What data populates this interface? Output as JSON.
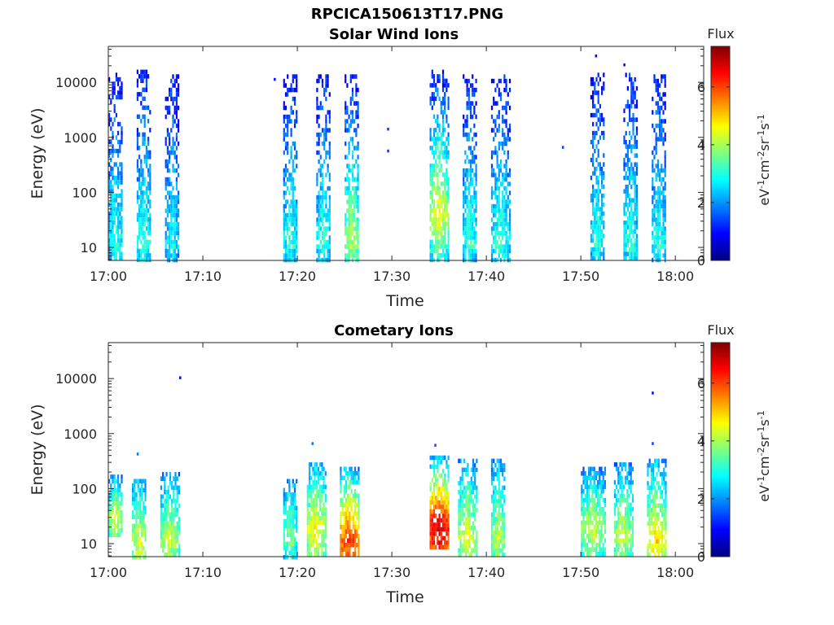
{
  "figure_title": "RPCICA150613T17.PNG",
  "colorbar": {
    "label": "Flux",
    "unit_html": "eV<tspan baseline-shift='super' font-size='11'>-1</tspan>cm<tspan baseline-shift='super' font-size='11'>-2</tspan>sr<tspan baseline-shift='super' font-size='11'>-1</tspan>s<tspan baseline-shift='super' font-size='11'>-1</tspan>",
    "unit_text": "eV-1cm-2sr-1s-1",
    "range": [
      0,
      7.4
    ],
    "ticks": [
      "0",
      "2",
      "4",
      "6"
    ],
    "colormap": "jet"
  },
  "chart_data": [
    {
      "type": "heatmap",
      "title": "Solar Wind Ions",
      "xlabel": "Time",
      "ylabel": "Energy (eV)",
      "x_range": [
        "17:00",
        "18:03"
      ],
      "x_ticks": [
        "17:00",
        "17:10",
        "17:20",
        "17:30",
        "17:40",
        "17:50",
        "18:00"
      ],
      "y_scale": "log",
      "y_range": [
        5.8,
        45000
      ],
      "y_ticks": [
        "10",
        "100",
        "1000",
        "10000"
      ],
      "scans": [
        {
          "start": "17:00",
          "end": "17:01.5",
          "min_e": 6,
          "max_e": 15000,
          "peak_e": 12,
          "peak_flux": 3.2,
          "high_flux": 1.2
        },
        {
          "start": "17:03",
          "end": "17:04.5",
          "min_e": 6,
          "max_e": 17000,
          "peak_e": 12,
          "peak_flux": 3.3,
          "high_flux": 1.3
        },
        {
          "start": "17:06",
          "end": "17:07.5",
          "min_e": 6,
          "max_e": 14000,
          "peak_e": 12,
          "peak_flux": 3.0,
          "high_flux": 1.2
        },
        {
          "start": "17:18.5",
          "end": "17:20",
          "min_e": 6,
          "max_e": 14000,
          "peak_e": 12,
          "peak_flux": 3.2,
          "high_flux": 1.3
        },
        {
          "start": "17:22",
          "end": "17:23.5",
          "min_e": 6,
          "max_e": 14000,
          "peak_e": 12,
          "peak_flux": 3.2,
          "high_flux": 1.3
        },
        {
          "start": "17:25",
          "end": "17:26.5",
          "min_e": 6,
          "max_e": 14000,
          "peak_e": 12,
          "peak_flux": 4.2,
          "high_flux": 1.3
        },
        {
          "start": "17:34",
          "end": "17:36",
          "min_e": 6,
          "max_e": 17000,
          "peak_e": 40,
          "peak_flux": 4.6,
          "high_flux": 1.3
        },
        {
          "start": "17:37.5",
          "end": "17:39",
          "min_e": 6,
          "max_e": 14000,
          "peak_e": 12,
          "peak_flux": 3.3,
          "high_flux": 1.3
        },
        {
          "start": "17:40.5",
          "end": "17:42.5",
          "min_e": 6,
          "max_e": 14000,
          "peak_e": 12,
          "peak_flux": 3.3,
          "high_flux": 1.3
        },
        {
          "start": "17:51",
          "end": "17:52.5",
          "min_e": 6,
          "max_e": 15000,
          "peak_e": 12,
          "peak_flux": 3.2,
          "high_flux": 1.3
        },
        {
          "start": "17:54.5",
          "end": "17:56",
          "min_e": 6,
          "max_e": 18000,
          "peak_e": 12,
          "peak_flux": 3.2,
          "high_flux": 1.3
        },
        {
          "start": "17:57.5",
          "end": "17:59",
          "min_e": 6,
          "max_e": 14000,
          "peak_e": 12,
          "peak_flux": 3.2,
          "high_flux": 1.3
        }
      ],
      "points": [
        {
          "t": "17:17.5",
          "e": 12000,
          "flux": 1.0
        },
        {
          "t": "17:29.5",
          "e": 1500,
          "flux": 1.3
        },
        {
          "t": "17:29.5",
          "e": 600,
          "flux": 1.3
        },
        {
          "t": "17:48",
          "e": 700,
          "flux": 1.5
        },
        {
          "t": "17:51.5",
          "e": 32000,
          "flux": 1.0
        },
        {
          "t": "17:54.5",
          "e": 22000,
          "flux": 1.0
        }
      ]
    },
    {
      "type": "heatmap",
      "title": "Cometary Ions",
      "xlabel": "Time",
      "ylabel": "Energy (eV)",
      "x_range": [
        "17:00",
        "18:03"
      ],
      "x_ticks": [
        "17:00",
        "17:10",
        "17:20",
        "17:30",
        "17:40",
        "17:50",
        "18:00"
      ],
      "y_scale": "log",
      "y_range": [
        5.8,
        45000
      ],
      "y_ticks": [
        "10",
        "100",
        "1000",
        "10000"
      ],
      "scans": [
        {
          "start": "17:00",
          "end": "17:01.5",
          "min_e": 15,
          "max_e": 180,
          "peak_e": 35,
          "peak_flux": 4.5,
          "high_flux": 2.3
        },
        {
          "start": "17:02.5",
          "end": "17:04",
          "min_e": 6,
          "max_e": 150,
          "peak_e": 12,
          "peak_flux": 4.6,
          "high_flux": 2.4
        },
        {
          "start": "17:05.5",
          "end": "17:07.5",
          "min_e": 6,
          "max_e": 200,
          "peak_e": 12,
          "peak_flux": 4.4,
          "high_flux": 2.3
        },
        {
          "start": "17:18.5",
          "end": "17:20",
          "min_e": 6,
          "max_e": 150,
          "peak_e": 15,
          "peak_flux": 3.8,
          "high_flux": 2.3
        },
        {
          "start": "17:21",
          "end": "17:23",
          "min_e": 6,
          "max_e": 300,
          "peak_e": 20,
          "peak_flux": 4.8,
          "high_flux": 2.5
        },
        {
          "start": "17:24.5",
          "end": "17:26.5",
          "min_e": 6,
          "max_e": 250,
          "peak_e": 12,
          "peak_flux": 6.3,
          "high_flux": 2.6
        },
        {
          "start": "17:34",
          "end": "17:36",
          "min_e": 8,
          "max_e": 400,
          "peak_e": 22,
          "peak_flux": 7.0,
          "high_flux": 2.6
        },
        {
          "start": "17:37",
          "end": "17:39",
          "min_e": 6,
          "max_e": 350,
          "peak_e": 15,
          "peak_flux": 4.6,
          "high_flux": 2.4
        },
        {
          "start": "17:40.5",
          "end": "17:42",
          "min_e": 6,
          "max_e": 350,
          "peak_e": 12,
          "peak_flux": 4.3,
          "high_flux": 2.3
        },
        {
          "start": "17:50",
          "end": "17:52.5",
          "min_e": 6,
          "max_e": 250,
          "peak_e": 20,
          "peak_flux": 4.4,
          "high_flux": 2.3
        },
        {
          "start": "17:53.5",
          "end": "17:55.5",
          "min_e": 6,
          "max_e": 300,
          "peak_e": 15,
          "peak_flux": 4.4,
          "high_flux": 2.3
        },
        {
          "start": "17:57",
          "end": "17:59",
          "min_e": 6,
          "max_e": 350,
          "peak_e": 12,
          "peak_flux": 5.0,
          "high_flux": 2.4
        }
      ],
      "points": [
        {
          "t": "17:07.5",
          "e": 11000,
          "flux": 1.0
        },
        {
          "t": "17:03",
          "e": 450,
          "flux": 1.8
        },
        {
          "t": "17:21.5",
          "e": 700,
          "flux": 1.8
        },
        {
          "t": "17:57.5",
          "e": 5800,
          "flux": 1.0
        },
        {
          "t": "17:57.5",
          "e": 700,
          "flux": 1.4
        },
        {
          "t": "17:34.5",
          "e": 650,
          "flux": 1.5
        }
      ]
    }
  ]
}
